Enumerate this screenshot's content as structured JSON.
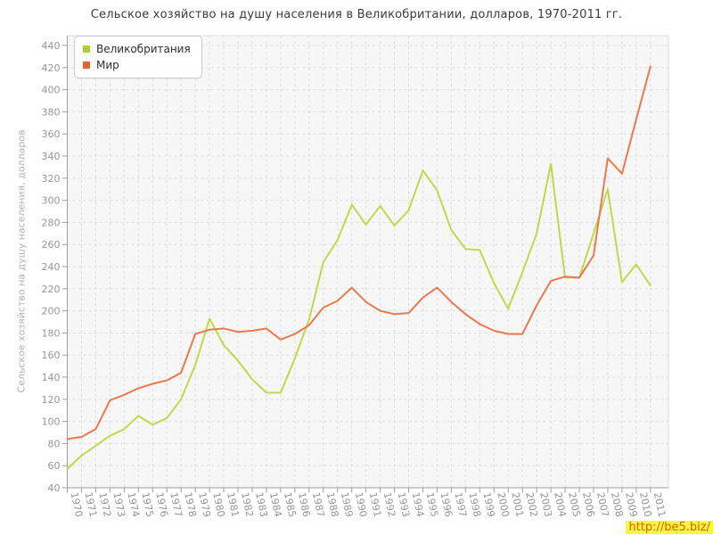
{
  "chart_data": {
    "type": "line",
    "title": "Сельское хозяйство на душу населения в Великобритании, долларов, 1970-2011 гг.",
    "xlabel": "",
    "ylabel": "Сельское хозяйство на душу населения, долларов",
    "ylim": [
      40,
      440
    ],
    "ytick_step": 20,
    "y_ticks": [
      40,
      60,
      80,
      100,
      120,
      140,
      160,
      180,
      200,
      220,
      240,
      260,
      280,
      300,
      320,
      340,
      360,
      380,
      400,
      420,
      440
    ],
    "grid": true,
    "grid_style": "dashed",
    "legend_position": "top-left",
    "x": [
      1970,
      1971,
      1972,
      1973,
      1974,
      1975,
      1976,
      1977,
      1978,
      1979,
      1980,
      1981,
      1982,
      1983,
      1984,
      1985,
      1986,
      1987,
      1988,
      1989,
      1990,
      1991,
      1992,
      1993,
      1994,
      1995,
      1996,
      1997,
      1998,
      1999,
      2000,
      2001,
      2002,
      2003,
      2004,
      2005,
      2006,
      2007,
      2008,
      2009,
      2010,
      2011
    ],
    "series": [
      {
        "name": "Великобритания",
        "swatch_color": "#b2ce2b",
        "line_color": "#c1d84d",
        "values": [
          57,
          69,
          78,
          87,
          93,
          105,
          97,
          103,
          120,
          151,
          193,
          169,
          155,
          138,
          126,
          126,
          157,
          192,
          244,
          264,
          296,
          278,
          295,
          277,
          291,
          327,
          309,
          273,
          256,
          255,
          225,
          202,
          235,
          270,
          333,
          230,
          230,
          270,
          310,
          226,
          242,
          223
        ]
      },
      {
        "name": "Мир",
        "swatch_color": "#e4632d",
        "line_color": "#e87a4e",
        "values": [
          84,
          86,
          93,
          119,
          124,
          130,
          134,
          137,
          144,
          179,
          183,
          184,
          181,
          182,
          184,
          174,
          179,
          187,
          203,
          209,
          221,
          208,
          200,
          197,
          198,
          212,
          221,
          208,
          197,
          188,
          182,
          179,
          179,
          205,
          227,
          231,
          230,
          250,
          338,
          324,
          373,
          421
        ]
      }
    ],
    "colors": {
      "plot_background": "#f7f7f7",
      "grid_line": "#dcdcdc",
      "axis_line": "#9e9e9e",
      "tick_label": "#969696",
      "title_text": "#3b3b3b",
      "axis_title_text": "#b3b3b3"
    }
  },
  "watermark": {
    "text": "http://be5.biz/",
    "text_color": "#e25e00",
    "bg_color": "#f9f73f"
  }
}
